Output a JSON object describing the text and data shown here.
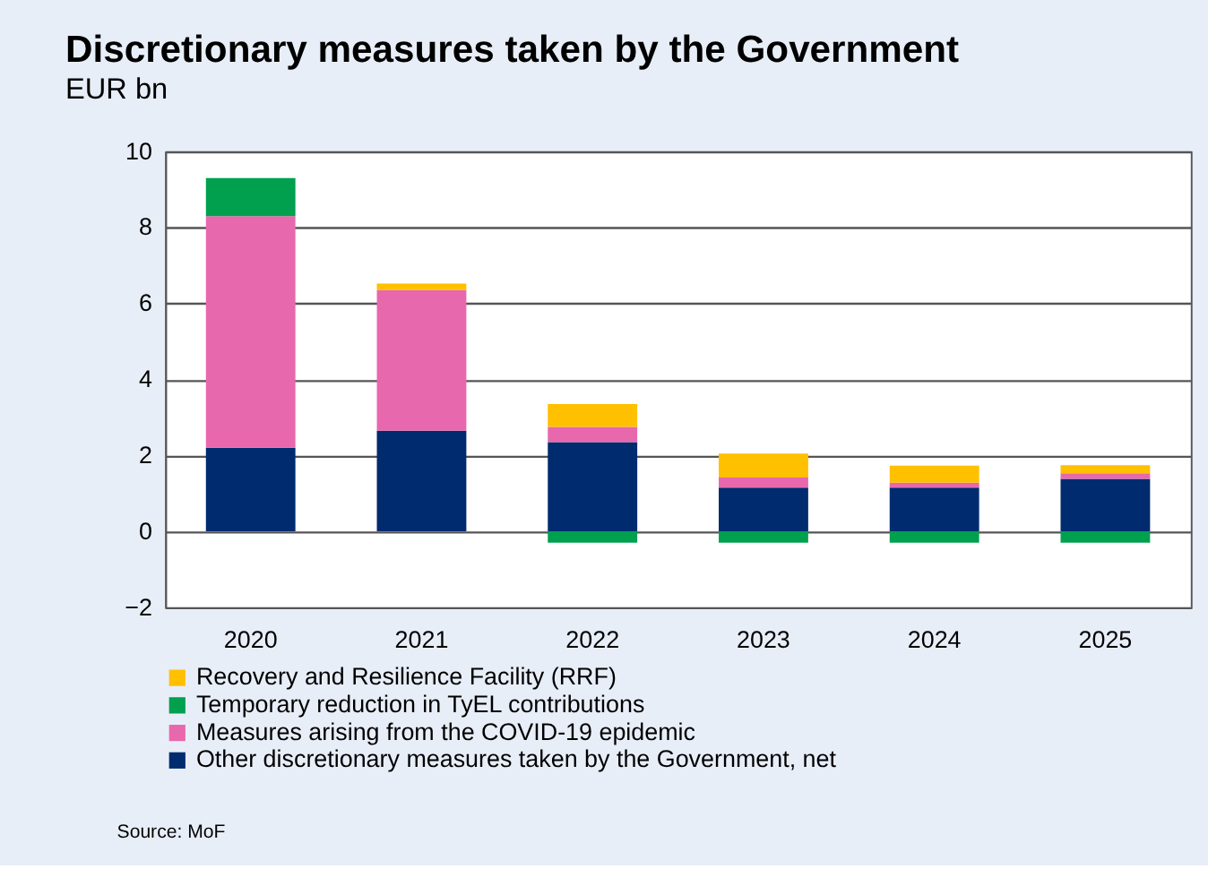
{
  "chart_data": {
    "type": "bar",
    "title": "Discretionary measures taken by the Government",
    "subtitle": "EUR bn",
    "categories": [
      "2020",
      "2021",
      "2022",
      "2023",
      "2024",
      "2025"
    ],
    "stacked": true,
    "series": [
      {
        "name": "Other discretionary measures taken by the Government, net",
        "color": "#002b6e",
        "values": [
          2.2,
          2.65,
          2.35,
          1.15,
          1.15,
          1.38
        ]
      },
      {
        "name": "Measures arising from the COVID-19 epidemic",
        "color": "#e868ad",
        "values": [
          6.1,
          3.7,
          0.4,
          0.27,
          0.13,
          0.15
        ]
      },
      {
        "name": "Temporary reduction in TyEL contributions",
        "color": "#00a04f",
        "values": [
          1.0,
          null,
          -0.3,
          -0.3,
          -0.3,
          -0.3
        ]
      },
      {
        "name": "Recovery and Resilience Facility (RRF)",
        "color": "#ffc000",
        "values": [
          null,
          0.17,
          0.6,
          0.63,
          0.45,
          0.21
        ]
      }
    ],
    "ylim": [
      -2,
      10
    ],
    "yticks": [
      -2,
      0,
      2,
      4,
      6,
      8,
      10
    ],
    "grid": "y",
    "legend": "bottom",
    "annotations": [
      "Source: MoF"
    ]
  }
}
